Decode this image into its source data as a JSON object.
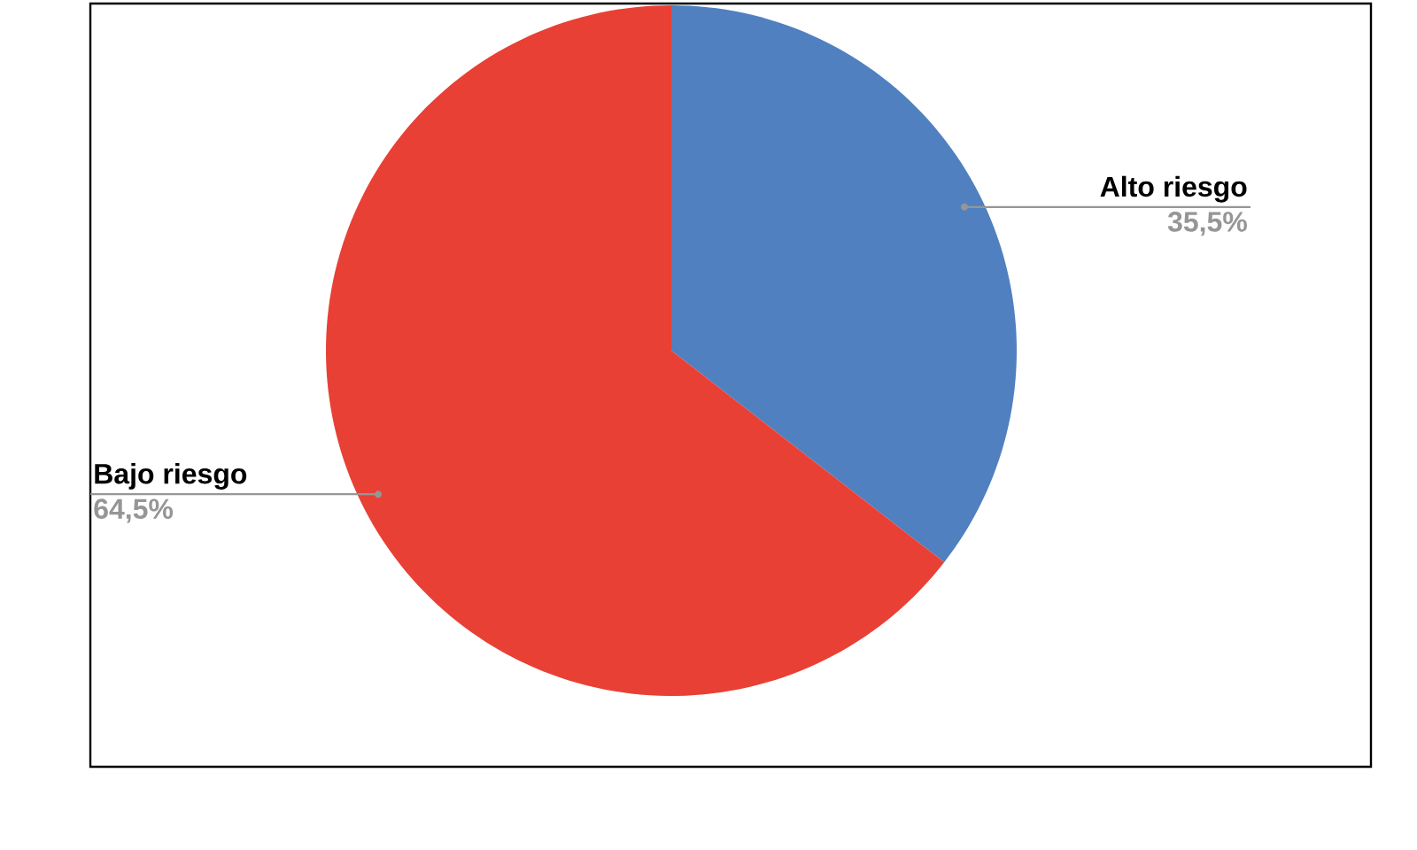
{
  "chart_data": {
    "type": "pie",
    "categories": [
      "Alto riesgo",
      "Bajo riesgo"
    ],
    "values": [
      35.5,
      64.5
    ],
    "colors": [
      "#5080c0",
      "#e84035"
    ],
    "value_labels": [
      "35,5%",
      "64,5%"
    ]
  }
}
